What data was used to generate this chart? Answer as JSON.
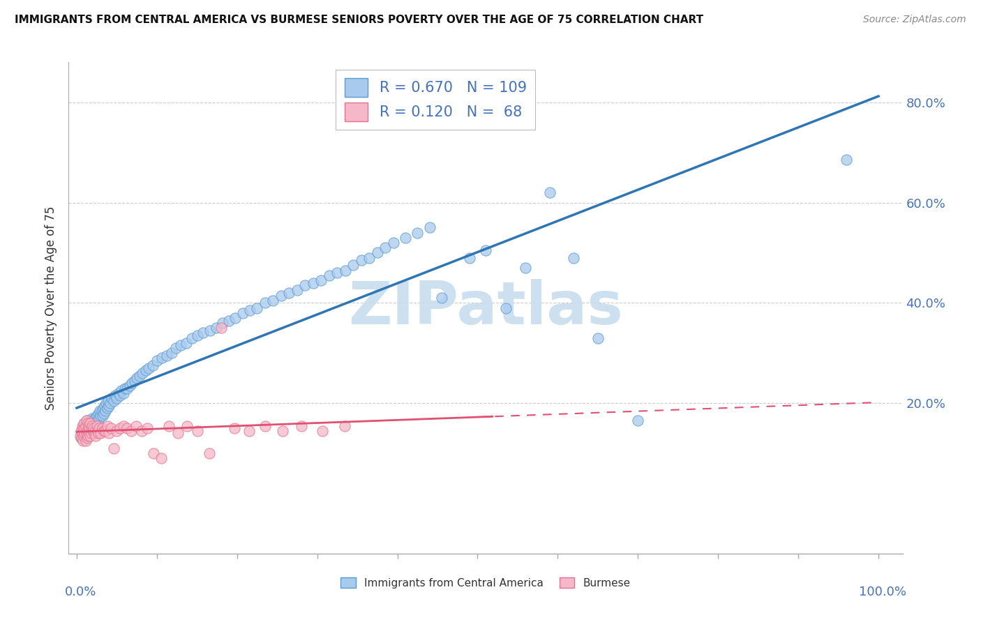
{
  "title": "IMMIGRANTS FROM CENTRAL AMERICA VS BURMESE SENIORS POVERTY OVER THE AGE OF 75 CORRELATION CHART",
  "source": "Source: ZipAtlas.com",
  "ylabel": "Seniors Poverty Over the Age of 75",
  "legend_label_blue": "Immigrants from Central America",
  "legend_label_pink": "Burmese",
  "R_blue": 0.67,
  "N_blue": 109,
  "R_pink": 0.12,
  "N_pink": 68,
  "color_blue_fill": "#A8CAEC",
  "color_blue_edge": "#5B9BD5",
  "color_blue_line": "#2E75B6",
  "color_pink_fill": "#F4B8C8",
  "color_pink_edge": "#E87090",
  "color_pink_line": "#E05070",
  "ytick_values": [
    0.0,
    0.2,
    0.4,
    0.6,
    0.8
  ],
  "ylim": [
    -0.1,
    0.88
  ],
  "xlim": [
    -0.01,
    1.03
  ],
  "watermark_color": "#C8DDEF",
  "bg_color": "#FFFFFF",
  "grid_color": "#CCCCCC",
  "axis_label_color": "#4472C4",
  "title_color": "#111111",
  "source_color": "#888888",
  "blue_points_x": [
    0.005,
    0.007,
    0.008,
    0.009,
    0.01,
    0.01,
    0.011,
    0.012,
    0.013,
    0.013,
    0.014,
    0.015,
    0.015,
    0.016,
    0.017,
    0.018,
    0.018,
    0.019,
    0.02,
    0.02,
    0.021,
    0.022,
    0.023,
    0.024,
    0.025,
    0.026,
    0.027,
    0.028,
    0.029,
    0.03,
    0.031,
    0.032,
    0.033,
    0.034,
    0.035,
    0.036,
    0.037,
    0.038,
    0.039,
    0.04,
    0.042,
    0.044,
    0.046,
    0.048,
    0.05,
    0.052,
    0.054,
    0.056,
    0.058,
    0.06,
    0.063,
    0.066,
    0.069,
    0.072,
    0.075,
    0.078,
    0.082,
    0.086,
    0.09,
    0.095,
    0.1,
    0.106,
    0.112,
    0.118,
    0.124,
    0.13,
    0.137,
    0.144,
    0.151,
    0.158,
    0.166,
    0.174,
    0.182,
    0.19,
    0.198,
    0.207,
    0.216,
    0.225,
    0.235,
    0.245,
    0.255,
    0.265,
    0.275,
    0.285,
    0.295,
    0.305,
    0.315,
    0.325,
    0.335,
    0.345,
    0.355,
    0.365,
    0.375,
    0.385,
    0.395,
    0.41,
    0.425,
    0.44,
    0.455,
    0.47,
    0.49,
    0.51,
    0.535,
    0.56,
    0.59,
    0.62,
    0.65,
    0.7,
    0.96
  ],
  "blue_points_y": [
    0.13,
    0.145,
    0.135,
    0.15,
    0.14,
    0.16,
    0.145,
    0.155,
    0.135,
    0.165,
    0.15,
    0.14,
    0.16,
    0.155,
    0.145,
    0.165,
    0.155,
    0.17,
    0.145,
    0.16,
    0.165,
    0.155,
    0.17,
    0.16,
    0.175,
    0.165,
    0.18,
    0.17,
    0.185,
    0.175,
    0.185,
    0.175,
    0.19,
    0.18,
    0.195,
    0.185,
    0.2,
    0.19,
    0.205,
    0.195,
    0.2,
    0.21,
    0.205,
    0.215,
    0.21,
    0.22,
    0.215,
    0.225,
    0.22,
    0.23,
    0.23,
    0.235,
    0.24,
    0.245,
    0.25,
    0.255,
    0.26,
    0.265,
    0.27,
    0.275,
    0.285,
    0.29,
    0.295,
    0.3,
    0.31,
    0.315,
    0.32,
    0.33,
    0.335,
    0.34,
    0.345,
    0.35,
    0.36,
    0.365,
    0.37,
    0.38,
    0.385,
    0.39,
    0.4,
    0.405,
    0.415,
    0.42,
    0.425,
    0.435,
    0.44,
    0.445,
    0.455,
    0.46,
    0.465,
    0.475,
    0.485,
    0.49,
    0.5,
    0.51,
    0.52,
    0.53,
    0.54,
    0.55,
    0.41,
    0.79,
    0.49,
    0.505,
    0.39,
    0.47,
    0.62,
    0.49,
    0.33,
    0.165,
    0.685
  ],
  "pink_points_x": [
    0.004,
    0.005,
    0.006,
    0.007,
    0.007,
    0.008,
    0.008,
    0.009,
    0.009,
    0.01,
    0.01,
    0.011,
    0.011,
    0.012,
    0.012,
    0.013,
    0.013,
    0.014,
    0.014,
    0.015,
    0.015,
    0.016,
    0.016,
    0.017,
    0.017,
    0.018,
    0.018,
    0.019,
    0.02,
    0.021,
    0.022,
    0.023,
    0.024,
    0.025,
    0.026,
    0.027,
    0.028,
    0.03,
    0.032,
    0.034,
    0.036,
    0.038,
    0.04,
    0.043,
    0.046,
    0.05,
    0.054,
    0.058,
    0.063,
    0.068,
    0.074,
    0.081,
    0.088,
    0.096,
    0.105,
    0.115,
    0.126,
    0.138,
    0.151,
    0.165,
    0.18,
    0.197,
    0.215,
    0.235,
    0.257,
    0.28,
    0.306,
    0.334
  ],
  "pink_points_y": [
    0.135,
    0.145,
    0.13,
    0.155,
    0.14,
    0.125,
    0.15,
    0.135,
    0.16,
    0.14,
    0.15,
    0.125,
    0.155,
    0.14,
    0.165,
    0.13,
    0.145,
    0.16,
    0.135,
    0.145,
    0.155,
    0.14,
    0.15,
    0.135,
    0.16,
    0.14,
    0.15,
    0.155,
    0.145,
    0.15,
    0.14,
    0.145,
    0.135,
    0.155,
    0.145,
    0.14,
    0.15,
    0.14,
    0.15,
    0.145,
    0.145,
    0.155,
    0.14,
    0.15,
    0.11,
    0.145,
    0.15,
    0.155,
    0.15,
    0.145,
    0.155,
    0.145,
    0.15,
    0.1,
    0.09,
    0.155,
    0.14,
    0.155,
    0.145,
    0.1,
    0.35,
    0.15,
    0.145,
    0.155,
    0.145,
    0.155,
    0.145,
    0.155
  ]
}
